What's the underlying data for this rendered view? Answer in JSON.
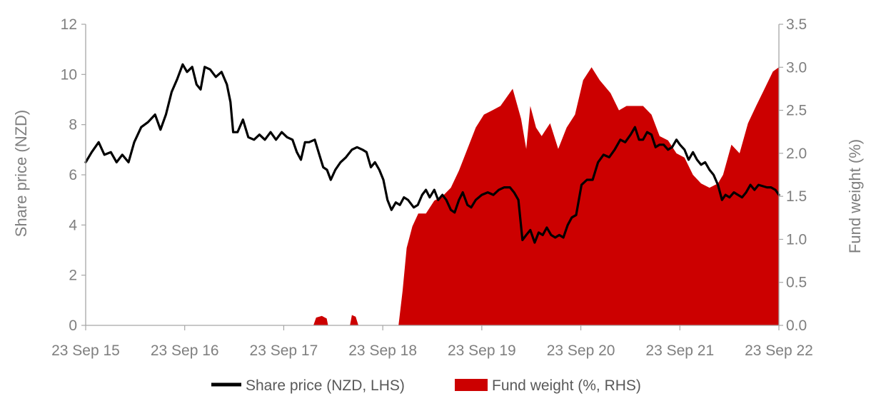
{
  "chart_data": {
    "type": "line",
    "title": "",
    "xlabel": "",
    "ylabel": "Share price (NZD)",
    "y2label": "Fund weight (%)",
    "ylim": [
      0,
      12
    ],
    "y2lim": [
      0,
      3.5
    ],
    "xlim": [
      "2015-09-23",
      "2022-09-23"
    ],
    "x_ticks": [
      "23 Sep 15",
      "23 Sep 16",
      "23 Sep 17",
      "23 Sep 18",
      "23 Sep 19",
      "23 Sep 20",
      "23 Sep 21",
      "23 Sep 22"
    ],
    "y_ticks": [
      "0",
      "2",
      "4",
      "6",
      "8",
      "10",
      "12"
    ],
    "y2_ticks": [
      "0.0",
      "0.5",
      "1.0",
      "1.5",
      "2.0",
      "2.5",
      "3.0",
      "3.5"
    ],
    "grid": false,
    "legend_position": "bottom",
    "series": [
      {
        "name": "Share price (NZD, LHS)",
        "axis": "left",
        "style": "line",
        "color": "#000000",
        "points": [
          [
            "2015-09-23",
            6.5
          ],
          [
            "2015-10-15",
            6.9
          ],
          [
            "2015-11-10",
            7.3
          ],
          [
            "2015-12-01",
            6.8
          ],
          [
            "2015-12-25",
            6.9
          ],
          [
            "2016-01-15",
            6.5
          ],
          [
            "2016-02-05",
            6.8
          ],
          [
            "2016-02-28",
            6.5
          ],
          [
            "2016-03-20",
            7.3
          ],
          [
            "2016-04-15",
            7.9
          ],
          [
            "2016-05-10",
            8.1
          ],
          [
            "2016-06-05",
            8.4
          ],
          [
            "2016-06-25",
            7.8
          ],
          [
            "2016-07-15",
            8.4
          ],
          [
            "2016-08-05",
            9.3
          ],
          [
            "2016-08-25",
            9.8
          ],
          [
            "2016-09-15",
            10.4
          ],
          [
            "2016-10-01",
            10.1
          ],
          [
            "2016-10-20",
            10.3
          ],
          [
            "2016-11-05",
            9.6
          ],
          [
            "2016-11-20",
            9.4
          ],
          [
            "2016-12-05",
            10.3
          ],
          [
            "2016-12-25",
            10.2
          ],
          [
            "2017-01-15",
            9.9
          ],
          [
            "2017-02-05",
            10.1
          ],
          [
            "2017-02-25",
            9.6
          ],
          [
            "2017-03-10",
            8.9
          ],
          [
            "2017-03-20",
            7.7
          ],
          [
            "2017-04-05",
            7.7
          ],
          [
            "2017-04-25",
            8.2
          ],
          [
            "2017-05-15",
            7.5
          ],
          [
            "2017-06-05",
            7.4
          ],
          [
            "2017-06-25",
            7.6
          ],
          [
            "2017-07-15",
            7.4
          ],
          [
            "2017-08-05",
            7.7
          ],
          [
            "2017-08-25",
            7.4
          ],
          [
            "2017-09-15",
            7.7
          ],
          [
            "2017-10-05",
            7.5
          ],
          [
            "2017-10-25",
            7.4
          ],
          [
            "2017-11-10",
            6.9
          ],
          [
            "2017-11-25",
            6.6
          ],
          [
            "2017-12-10",
            7.3
          ],
          [
            "2017-12-25",
            7.3
          ],
          [
            "2018-01-15",
            7.4
          ],
          [
            "2018-02-01",
            6.8
          ],
          [
            "2018-02-15",
            6.3
          ],
          [
            "2018-03-01",
            6.2
          ],
          [
            "2018-03-15",
            5.8
          ],
          [
            "2018-04-01",
            6.2
          ],
          [
            "2018-04-20",
            6.5
          ],
          [
            "2018-05-10",
            6.7
          ],
          [
            "2018-06-01",
            7.0
          ],
          [
            "2018-06-20",
            7.1
          ],
          [
            "2018-07-10",
            7.0
          ],
          [
            "2018-07-25",
            6.9
          ],
          [
            "2018-08-10",
            6.3
          ],
          [
            "2018-08-25",
            6.5
          ],
          [
            "2018-09-10",
            6.2
          ],
          [
            "2018-09-25",
            5.8
          ],
          [
            "2018-10-10",
            5.0
          ],
          [
            "2018-10-25",
            4.6
          ],
          [
            "2018-11-10",
            4.9
          ],
          [
            "2018-11-25",
            4.8
          ],
          [
            "2018-12-10",
            5.1
          ],
          [
            "2018-12-25",
            5.0
          ],
          [
            "2019-01-15",
            4.7
          ],
          [
            "2019-01-30",
            4.8
          ],
          [
            "2019-02-15",
            5.2
          ],
          [
            "2019-03-01",
            5.4
          ],
          [
            "2019-03-15",
            5.1
          ],
          [
            "2019-04-01",
            5.4
          ],
          [
            "2019-04-15",
            5.0
          ],
          [
            "2019-05-01",
            5.2
          ],
          [
            "2019-05-15",
            5.0
          ],
          [
            "2019-06-01",
            4.6
          ],
          [
            "2019-06-15",
            4.5
          ],
          [
            "2019-07-01",
            5.0
          ],
          [
            "2019-07-15",
            5.3
          ],
          [
            "2019-08-01",
            4.8
          ],
          [
            "2019-08-15",
            4.7
          ],
          [
            "2019-09-01",
            5.0
          ],
          [
            "2019-09-23",
            5.2
          ],
          [
            "2019-10-15",
            5.3
          ],
          [
            "2019-11-05",
            5.2
          ],
          [
            "2019-11-25",
            5.4
          ],
          [
            "2019-12-15",
            5.5
          ],
          [
            "2020-01-05",
            5.5
          ],
          [
            "2020-01-20",
            5.3
          ],
          [
            "2020-02-05",
            5.0
          ],
          [
            "2020-02-20",
            3.4
          ],
          [
            "2020-03-05",
            3.6
          ],
          [
            "2020-03-20",
            3.8
          ],
          [
            "2020-04-05",
            3.3
          ],
          [
            "2020-04-20",
            3.7
          ],
          [
            "2020-05-05",
            3.6
          ],
          [
            "2020-05-20",
            3.9
          ],
          [
            "2020-06-05",
            3.6
          ],
          [
            "2020-06-20",
            3.5
          ],
          [
            "2020-07-05",
            3.6
          ],
          [
            "2020-07-20",
            3.5
          ],
          [
            "2020-08-05",
            4.0
          ],
          [
            "2020-08-20",
            4.3
          ],
          [
            "2020-09-05",
            4.4
          ],
          [
            "2020-09-25",
            5.6
          ],
          [
            "2020-10-15",
            5.8
          ],
          [
            "2020-11-05",
            5.8
          ],
          [
            "2020-11-25",
            6.5
          ],
          [
            "2020-12-15",
            6.8
          ],
          [
            "2021-01-05",
            6.7
          ],
          [
            "2021-01-25",
            7.0
          ],
          [
            "2021-02-15",
            7.4
          ],
          [
            "2021-03-05",
            7.3
          ],
          [
            "2021-03-25",
            7.6
          ],
          [
            "2021-04-10",
            7.9
          ],
          [
            "2021-04-25",
            7.4
          ],
          [
            "2021-05-10",
            7.4
          ],
          [
            "2021-05-25",
            7.7
          ],
          [
            "2021-06-10",
            7.6
          ],
          [
            "2021-06-25",
            7.1
          ],
          [
            "2021-07-10",
            7.2
          ],
          [
            "2021-07-25",
            7.2
          ],
          [
            "2021-08-10",
            7.0
          ],
          [
            "2021-08-25",
            7.1
          ],
          [
            "2021-09-10",
            7.4
          ],
          [
            "2021-09-23",
            7.2
          ],
          [
            "2021-10-10",
            7.0
          ],
          [
            "2021-10-25",
            6.6
          ],
          [
            "2021-11-10",
            6.9
          ],
          [
            "2021-11-25",
            6.6
          ],
          [
            "2021-12-10",
            6.4
          ],
          [
            "2021-12-25",
            6.5
          ],
          [
            "2022-01-10",
            6.2
          ],
          [
            "2022-01-25",
            6.0
          ],
          [
            "2022-02-10",
            5.6
          ],
          [
            "2022-02-25",
            5.0
          ],
          [
            "2022-03-10",
            5.2
          ],
          [
            "2022-03-25",
            5.1
          ],
          [
            "2022-04-10",
            5.3
          ],
          [
            "2022-04-25",
            5.2
          ],
          [
            "2022-05-10",
            5.1
          ],
          [
            "2022-05-25",
            5.3
          ],
          [
            "2022-06-10",
            5.6
          ],
          [
            "2022-06-25",
            5.4
          ],
          [
            "2022-07-10",
            5.6
          ],
          [
            "2022-08-10",
            5.5
          ],
          [
            "2022-08-25",
            5.5
          ],
          [
            "2022-09-10",
            5.4
          ],
          [
            "2022-09-23",
            5.2
          ]
        ]
      },
      {
        "name": "Fund weight (%, RHS)",
        "axis": "right",
        "style": "area",
        "color": "#cc0000",
        "points": [
          [
            "2015-09-23",
            0.0
          ],
          [
            "2018-01-10",
            0.0
          ],
          [
            "2018-01-20",
            0.09
          ],
          [
            "2018-02-10",
            0.11
          ],
          [
            "2018-02-28",
            0.08
          ],
          [
            "2018-03-05",
            0.0
          ],
          [
            "2018-05-25",
            0.0
          ],
          [
            "2018-06-01",
            0.12
          ],
          [
            "2018-06-15",
            0.1
          ],
          [
            "2018-06-25",
            0.0
          ],
          [
            "2018-11-20",
            0.0
          ],
          [
            "2018-12-05",
            0.4
          ],
          [
            "2018-12-20",
            0.9
          ],
          [
            "2019-01-10",
            1.15
          ],
          [
            "2019-02-01",
            1.3
          ],
          [
            "2019-03-01",
            1.3
          ],
          [
            "2019-04-01",
            1.45
          ],
          [
            "2019-05-01",
            1.5
          ],
          [
            "2019-06-01",
            1.6
          ],
          [
            "2019-07-01",
            1.8
          ],
          [
            "2019-08-01",
            2.05
          ],
          [
            "2019-09-01",
            2.3
          ],
          [
            "2019-10-01",
            2.45
          ],
          [
            "2019-11-01",
            2.5
          ],
          [
            "2019-12-01",
            2.55
          ],
          [
            "2020-01-15",
            2.75
          ],
          [
            "2020-02-15",
            2.4
          ],
          [
            "2020-03-05",
            2.05
          ],
          [
            "2020-03-20",
            2.55
          ],
          [
            "2020-04-10",
            2.3
          ],
          [
            "2020-05-01",
            2.2
          ],
          [
            "2020-06-01",
            2.35
          ],
          [
            "2020-07-01",
            2.05
          ],
          [
            "2020-08-01",
            2.3
          ],
          [
            "2020-09-01",
            2.45
          ],
          [
            "2020-10-01",
            2.85
          ],
          [
            "2020-11-01",
            3.0
          ],
          [
            "2020-12-01",
            2.85
          ],
          [
            "2021-01-10",
            2.7
          ],
          [
            "2021-02-10",
            2.5
          ],
          [
            "2021-03-10",
            2.55
          ],
          [
            "2021-04-10",
            2.55
          ],
          [
            "2021-05-10",
            2.55
          ],
          [
            "2021-06-10",
            2.45
          ],
          [
            "2021-07-10",
            2.2
          ],
          [
            "2021-08-10",
            2.15
          ],
          [
            "2021-09-10",
            2.0
          ],
          [
            "2021-10-10",
            1.95
          ],
          [
            "2021-11-10",
            1.75
          ],
          [
            "2021-12-10",
            1.65
          ],
          [
            "2022-01-10",
            1.6
          ],
          [
            "2022-02-10",
            1.65
          ],
          [
            "2022-03-01",
            1.75
          ],
          [
            "2022-04-01",
            2.1
          ],
          [
            "2022-05-01",
            2.0
          ],
          [
            "2022-06-01",
            2.35
          ],
          [
            "2022-07-01",
            2.55
          ],
          [
            "2022-08-01",
            2.75
          ],
          [
            "2022-09-01",
            2.95
          ],
          [
            "2022-09-23",
            3.0
          ]
        ]
      }
    ]
  }
}
